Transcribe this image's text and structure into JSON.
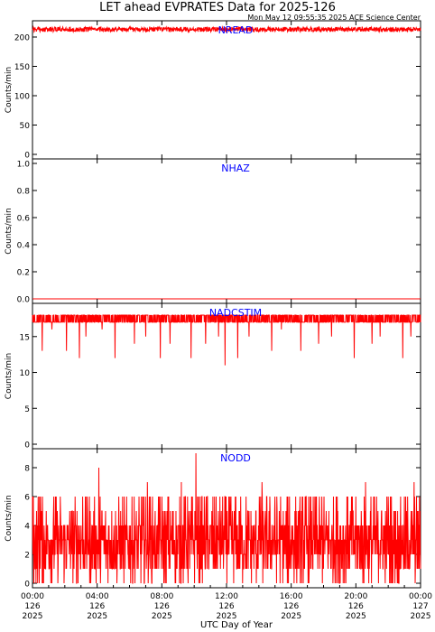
{
  "header": {
    "title": "LET ahead EVPRATES Data for 2025-126",
    "timestamp": "Mon May 12 09:55:35 2025 ACE Science Center"
  },
  "colors": {
    "series": "#ff0000",
    "panel_label": "#0000ff",
    "axes": "#000000",
    "background": "#ffffff"
  },
  "chart_data": [
    {
      "type": "line",
      "title": "NREAD",
      "ylabel": "Counts/min",
      "ylim": [
        0,
        220
      ],
      "yticks": [
        0,
        50,
        100,
        150,
        200
      ],
      "ytick_labels": [
        "0",
        "50",
        "100",
        "150",
        "200"
      ],
      "xlim": [
        0,
        24
      ],
      "pattern": "noise",
      "base": 213,
      "noise": 4,
      "series": [
        {
          "values": []
        }
      ]
    },
    {
      "type": "line",
      "title": "NHAZ",
      "ylabel": "Counts/min",
      "ylim": [
        0,
        1
      ],
      "yticks": [
        0,
        0.2,
        0.4,
        0.6,
        0.8,
        1.0
      ],
      "ytick_labels": [
        "0.0",
        "0.2",
        "0.4",
        "0.6",
        "0.8",
        "1.0"
      ],
      "xlim": [
        0,
        24
      ],
      "pattern": "zero",
      "base": 0,
      "series": [
        {
          "values": []
        }
      ]
    },
    {
      "type": "line",
      "title": "NADCSTIM",
      "ylabel": "Counts/min",
      "ylim": [
        0,
        19
      ],
      "yticks": [
        0,
        5,
        10,
        15
      ],
      "ytick_labels": [
        "0",
        "5",
        "10",
        "15"
      ],
      "xlim": [
        0,
        24
      ],
      "pattern": "band",
      "band": [
        17,
        18
      ],
      "dips": [
        [
          0.6,
          13
        ],
        [
          1.2,
          16
        ],
        [
          2.1,
          13
        ],
        [
          2.9,
          12
        ],
        [
          3.3,
          15
        ],
        [
          4.3,
          16
        ],
        [
          5.1,
          12
        ],
        [
          6.3,
          14
        ],
        [
          7.0,
          15
        ],
        [
          7.9,
          12
        ],
        [
          8.5,
          14
        ],
        [
          9.8,
          12
        ],
        [
          10.7,
          14
        ],
        [
          11.5,
          15
        ],
        [
          11.9,
          11
        ],
        [
          12.7,
          12
        ],
        [
          13.4,
          15
        ],
        [
          14.8,
          13
        ],
        [
          15.4,
          16
        ],
        [
          16.6,
          13
        ],
        [
          17.7,
          14
        ],
        [
          18.5,
          15
        ],
        [
          19.9,
          12
        ],
        [
          21.0,
          14
        ],
        [
          21.5,
          15
        ],
        [
          22.9,
          12
        ],
        [
          23.4,
          15
        ]
      ],
      "series": [
        {
          "values": []
        }
      ]
    },
    {
      "type": "line",
      "title": "NODD",
      "ylabel": "Counts/min",
      "ylim": [
        0,
        9
      ],
      "yticks": [
        0,
        2,
        4,
        6,
        8
      ],
      "ytick_labels": [
        "0",
        "2",
        "4",
        "6",
        "8"
      ],
      "xlim": [
        0,
        24
      ],
      "pattern": "discrete",
      "levels": [
        0,
        1,
        1,
        2,
        2,
        2,
        3,
        3,
        3,
        3,
        4,
        4,
        4,
        5,
        6
      ],
      "spikes": [
        [
          0.5,
          6
        ],
        [
          3.1,
          6
        ],
        [
          4.1,
          8
        ],
        [
          7.1,
          7
        ],
        [
          9.2,
          7
        ],
        [
          10.1,
          9
        ],
        [
          10.8,
          6
        ],
        [
          14.2,
          7
        ],
        [
          15.9,
          6
        ],
        [
          17.9,
          6
        ],
        [
          20.6,
          7
        ],
        [
          22.0,
          6
        ],
        [
          23.6,
          7
        ]
      ],
      "series": [
        {
          "values": []
        }
      ]
    }
  ],
  "x_axis": {
    "label": "UTC Day of Year",
    "ticks": [
      {
        "hour": 0,
        "time": "00:00",
        "day": "126",
        "year": "2025"
      },
      {
        "hour": 4,
        "time": "04:00",
        "day": "126",
        "year": "2025"
      },
      {
        "hour": 8,
        "time": "08:00",
        "day": "126",
        "year": "2025"
      },
      {
        "hour": 12,
        "time": "12:00",
        "day": "126",
        "year": "2025"
      },
      {
        "hour": 16,
        "time": "16:00",
        "day": "126",
        "year": "2025"
      },
      {
        "hour": 20,
        "time": "20:00",
        "day": "126",
        "year": "2025"
      },
      {
        "hour": 24,
        "time": "00:00",
        "day": "127",
        "year": "2025"
      }
    ]
  }
}
